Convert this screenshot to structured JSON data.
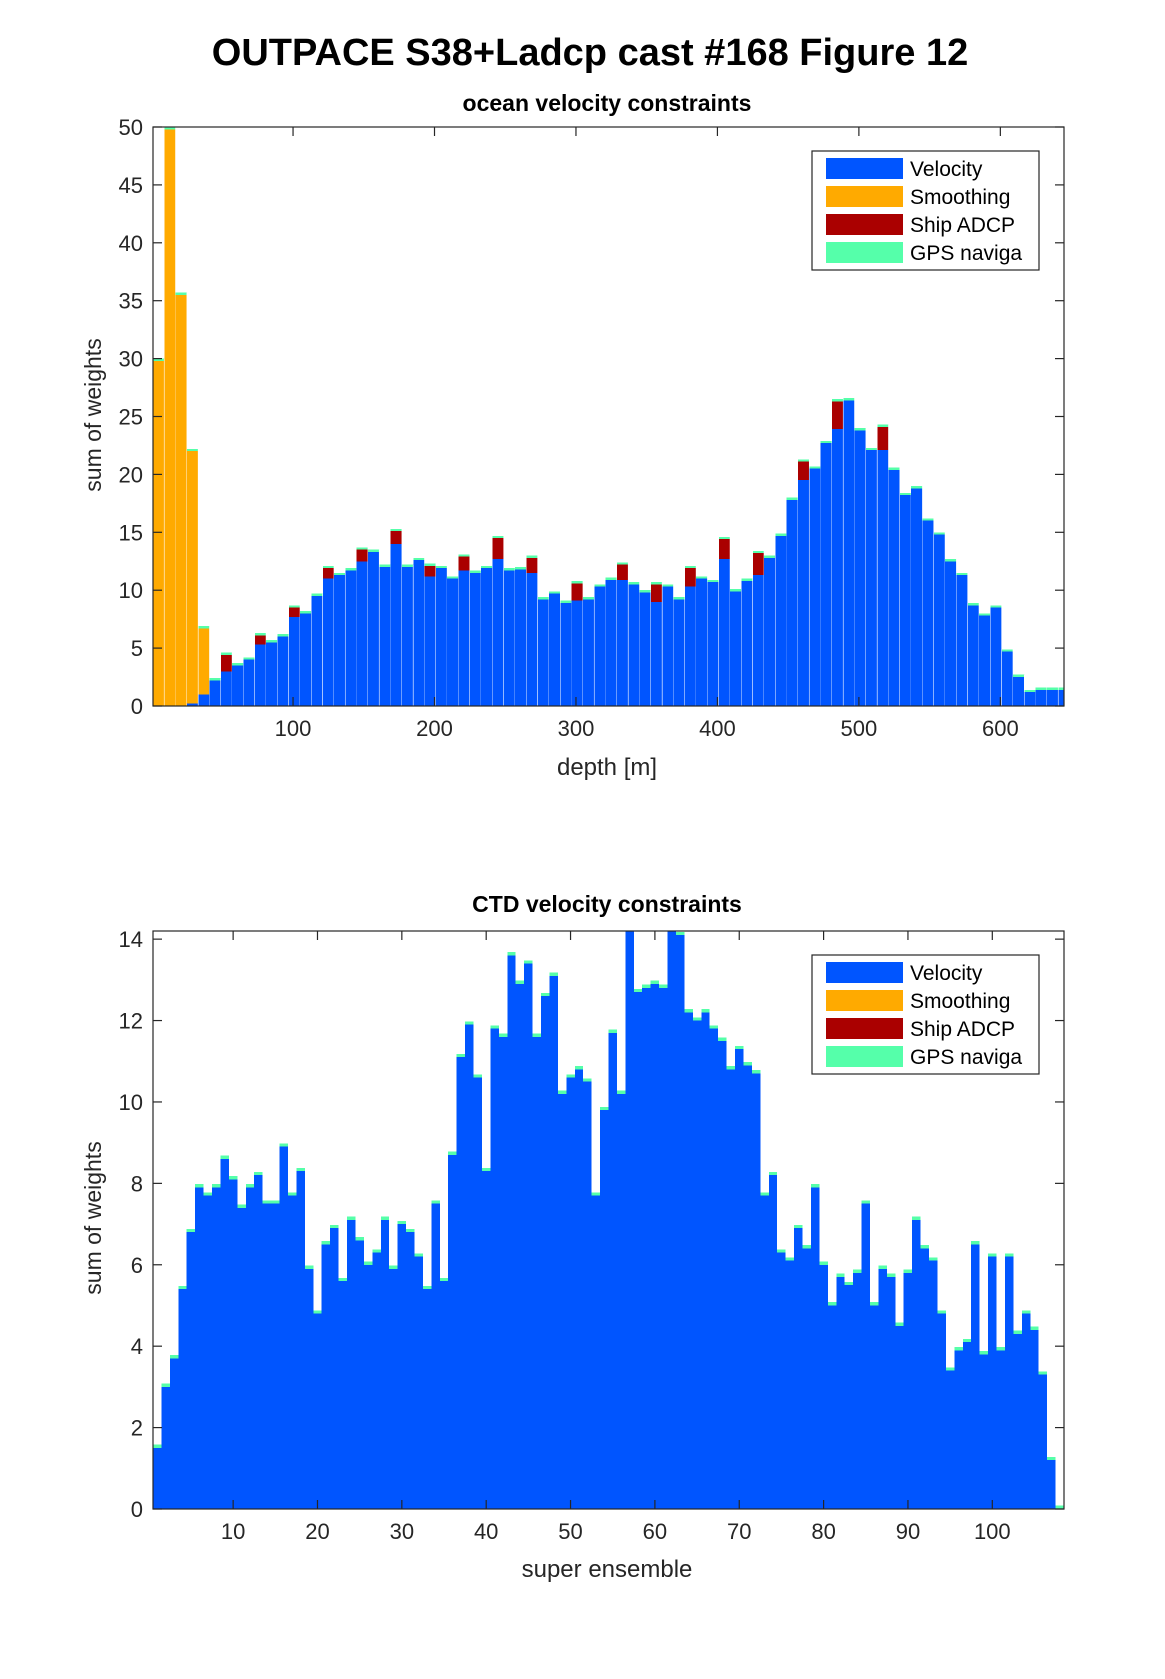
{
  "figure_title": "OUTPACE S38+Ladcp cast #168  Figure 12",
  "colors": {
    "velocity": "#0055ff",
    "smoothing": "#ffaa00",
    "ship_adcp": "#aa0000",
    "gps": "#55ffaa"
  },
  "legend": [
    "Velocity",
    "Smoothing",
    "Ship ADCP",
    "GPS naviga"
  ],
  "chart_data": [
    {
      "type": "bar",
      "stacked": true,
      "title": "ocean velocity constraints",
      "xlabel": "depth [m]",
      "ylabel": "sum of weights",
      "xlim": [
        1,
        645
      ],
      "ylim": [
        0,
        50
      ],
      "xticks": [
        100,
        200,
        300,
        400,
        500,
        600
      ],
      "yticks": [
        0,
        5,
        10,
        15,
        20,
        25,
        30,
        35,
        40,
        45,
        50
      ],
      "legend_position": "top-right",
      "bin_width": 8,
      "x": [
        5,
        13,
        21,
        29,
        37,
        45,
        53,
        61,
        69,
        77,
        85,
        93,
        101,
        109,
        117,
        125,
        133,
        141,
        149,
        157,
        165,
        173,
        181,
        189,
        197,
        205,
        213,
        221,
        229,
        237,
        245,
        253,
        261,
        269,
        277,
        285,
        293,
        301,
        309,
        317,
        325,
        333,
        341,
        349,
        357,
        365,
        373,
        381,
        389,
        397,
        405,
        413,
        421,
        429,
        437,
        445,
        453,
        461,
        469,
        477,
        485,
        493,
        501,
        509,
        517,
        525,
        533,
        541,
        549,
        557,
        565,
        573,
        581,
        589,
        597,
        605,
        613,
        621,
        629,
        637,
        645
      ],
      "series": [
        {
          "name": "Velocity",
          "values": [
            0,
            0,
            0,
            0.2,
            1.0,
            2.2,
            3.0,
            3.5,
            4.0,
            5.3,
            5.5,
            6.0,
            7.7,
            8.0,
            9.5,
            11.0,
            11.3,
            11.7,
            12.5,
            13.3,
            12.0,
            14.0,
            12.0,
            12.6,
            11.2,
            11.9,
            11.0,
            11.7,
            11.5,
            11.9,
            12.7,
            11.7,
            11.8,
            11.5,
            9.2,
            9.7,
            8.9,
            9.1,
            9.2,
            10.3,
            10.9,
            10.9,
            10.5,
            9.8,
            9.0,
            10.3,
            9.2,
            10.3,
            11.0,
            10.7,
            12.7,
            9.9,
            10.8,
            11.3,
            12.8,
            14.7,
            17.8,
            19.5,
            20.5,
            22.7,
            23.9,
            26.4,
            23.8,
            22.1,
            22.1,
            20.4,
            18.2,
            18.8,
            16.0,
            14.8,
            12.5,
            11.3,
            8.7,
            7.8,
            8.5,
            4.7,
            2.5,
            1.2,
            1.4,
            1.4,
            1.4
          ]
        },
        {
          "name": "Smoothing",
          "values": [
            29.8,
            49.8,
            35.5,
            21.8,
            5.7,
            0,
            0,
            0,
            0,
            0,
            0,
            0,
            0,
            0,
            0,
            0,
            0,
            0,
            0,
            0,
            0,
            0,
            0,
            0,
            0,
            0,
            0,
            0,
            0,
            0,
            0,
            0,
            0,
            0,
            0,
            0,
            0,
            0,
            0,
            0,
            0,
            0,
            0,
            0,
            0,
            0,
            0,
            0,
            0,
            0,
            0,
            0,
            0,
            0,
            0,
            0,
            0,
            0,
            0,
            0,
            0,
            0,
            0,
            0,
            0,
            0,
            0,
            0,
            0,
            0,
            0,
            0,
            0,
            0,
            0,
            0,
            0,
            0,
            0,
            0,
            0
          ]
        },
        {
          "name": "Ship ADCP",
          "values": [
            0,
            0,
            0,
            0,
            0,
            0,
            1.4,
            0,
            0,
            0.8,
            0,
            0,
            0.8,
            0,
            0,
            0.9,
            0,
            0,
            1.0,
            0,
            0,
            1.1,
            0,
            0,
            0.9,
            0,
            0,
            1.2,
            0,
            0,
            1.8,
            0,
            0,
            1.3,
            0,
            0,
            0,
            1.5,
            0,
            0,
            0,
            1.3,
            0,
            0,
            1.5,
            0,
            0,
            1.6,
            0,
            0,
            1.7,
            0,
            0,
            1.9,
            0,
            0,
            0,
            1.6,
            0,
            0,
            2.4,
            0,
            0,
            0,
            2.0,
            0,
            0,
            0,
            0,
            0,
            0,
            0,
            0,
            0,
            0,
            0,
            0,
            0,
            0,
            0,
            0
          ]
        },
        {
          "name": "GPS naviga",
          "values": [
            0.2,
            0.2,
            0.2,
            0.2,
            0.2,
            0.2,
            0.2,
            0.2,
            0.2,
            0.2,
            0.2,
            0.2,
            0.2,
            0.2,
            0.2,
            0.2,
            0.2,
            0.2,
            0.2,
            0.2,
            0.2,
            0.2,
            0.2,
            0.2,
            0.2,
            0.2,
            0.2,
            0.2,
            0.2,
            0.2,
            0.2,
            0.2,
            0.2,
            0.2,
            0.2,
            0.2,
            0.2,
            0.2,
            0.2,
            0.2,
            0.2,
            0.2,
            0.2,
            0.2,
            0.2,
            0.2,
            0.2,
            0.2,
            0.2,
            0.2,
            0.2,
            0.2,
            0.2,
            0.2,
            0.2,
            0.2,
            0.2,
            0.2,
            0.2,
            0.2,
            0.2,
            0.2,
            0.2,
            0.2,
            0.2,
            0.2,
            0.2,
            0.2,
            0.2,
            0.2,
            0.2,
            0.2,
            0.2,
            0.2,
            0.2,
            0.2,
            0.2,
            0.2,
            0.2,
            0.2,
            0.2
          ]
        }
      ]
    },
    {
      "type": "bar",
      "stacked": true,
      "title": "CTD velocity constraints",
      "xlabel": "super ensemble",
      "ylabel": "sum of weights",
      "xlim": [
        0.5,
        108.5
      ],
      "ylim": [
        0,
        14.2
      ],
      "xticks": [
        10,
        20,
        30,
        40,
        50,
        60,
        70,
        80,
        90,
        100
      ],
      "yticks": [
        0,
        2,
        4,
        6,
        8,
        10,
        12,
        14
      ],
      "legend_position": "top-right",
      "bin_width": 1,
      "x": [
        1,
        2,
        3,
        4,
        5,
        6,
        7,
        8,
        9,
        10,
        11,
        12,
        13,
        14,
        15,
        16,
        17,
        18,
        19,
        20,
        21,
        22,
        23,
        24,
        25,
        26,
        27,
        28,
        29,
        30,
        31,
        32,
        33,
        34,
        35,
        36,
        37,
        38,
        39,
        40,
        41,
        42,
        43,
        44,
        45,
        46,
        47,
        48,
        49,
        50,
        51,
        52,
        53,
        54,
        55,
        56,
        57,
        58,
        59,
        60,
        61,
        62,
        63,
        64,
        65,
        66,
        67,
        68,
        69,
        70,
        71,
        72,
        73,
        74,
        75,
        76,
        77,
        78,
        79,
        80,
        81,
        82,
        83,
        84,
        85,
        86,
        87,
        88,
        89,
        90,
        91,
        92,
        93,
        94,
        95,
        96,
        97,
        98,
        99,
        100,
        101,
        102,
        103,
        104,
        105,
        106,
        107,
        108
      ],
      "series": [
        {
          "name": "Velocity",
          "values": [
            1.5,
            3.0,
            3.7,
            5.4,
            6.8,
            7.9,
            7.7,
            7.9,
            8.6,
            8.1,
            7.4,
            7.9,
            8.2,
            7.5,
            7.5,
            8.9,
            7.7,
            8.3,
            5.9,
            4.8,
            6.5,
            6.9,
            5.6,
            7.1,
            6.6,
            6.0,
            6.3,
            7.1,
            5.9,
            7.0,
            6.8,
            6.2,
            5.4,
            7.5,
            5.6,
            8.7,
            11.1,
            11.9,
            10.6,
            8.3,
            11.8,
            11.6,
            13.6,
            12.9,
            13.4,
            11.6,
            12.6,
            13.1,
            10.2,
            10.6,
            10.8,
            10.5,
            7.7,
            9.8,
            11.7,
            10.2,
            14.2,
            12.7,
            12.8,
            12.9,
            12.8,
            14.2,
            14.1,
            12.2,
            12.0,
            12.2,
            11.8,
            11.5,
            10.8,
            11.3,
            10.9,
            10.7,
            7.7,
            8.2,
            6.3,
            6.1,
            6.9,
            6.4,
            7.9,
            6.0,
            5.0,
            5.7,
            5.5,
            5.8,
            7.5,
            5.0,
            5.9,
            5.7,
            4.5,
            5.8,
            7.1,
            6.4,
            6.1,
            4.8,
            3.4,
            3.9,
            4.1,
            6.5,
            3.8,
            6.2,
            3.9,
            6.2,
            4.3,
            4.8,
            4.4,
            3.3,
            1.2,
            0
          ]
        },
        {
          "name": "Smoothing",
          "values": [
            0,
            0,
            0,
            0,
            0,
            0,
            0,
            0,
            0,
            0,
            0,
            0,
            0,
            0,
            0,
            0,
            0,
            0,
            0,
            0,
            0,
            0,
            0,
            0,
            0,
            0,
            0,
            0,
            0,
            0,
            0,
            0,
            0,
            0,
            0,
            0,
            0,
            0,
            0,
            0,
            0,
            0,
            0,
            0,
            0,
            0,
            0,
            0,
            0,
            0,
            0,
            0,
            0,
            0,
            0,
            0,
            0,
            0,
            0,
            0,
            0,
            0,
            0,
            0,
            0,
            0,
            0,
            0,
            0,
            0,
            0,
            0,
            0,
            0,
            0,
            0,
            0,
            0,
            0,
            0,
            0,
            0,
            0,
            0,
            0,
            0,
            0,
            0,
            0,
            0,
            0,
            0,
            0,
            0,
            0,
            0,
            0,
            0,
            0,
            0,
            0,
            0,
            0,
            0,
            0,
            0,
            0,
            0
          ]
        },
        {
          "name": "Ship ADCP",
          "values": [
            0,
            0,
            0,
            0,
            0,
            0,
            0,
            0,
            0,
            0,
            0,
            0,
            0,
            0,
            0,
            0,
            0,
            0,
            0,
            0,
            0,
            0,
            0,
            0,
            0,
            0,
            0,
            0,
            0,
            0,
            0,
            0,
            0,
            0,
            0,
            0,
            0,
            0,
            0,
            0,
            0,
            0,
            0,
            0,
            0,
            0,
            0,
            0,
            0,
            0,
            0,
            0,
            0,
            0,
            0,
            0,
            0,
            0,
            0,
            0,
            0,
            0,
            0,
            0,
            0,
            0,
            0,
            0,
            0,
            0,
            0,
            0,
            0,
            0,
            0,
            0,
            0,
            0,
            0,
            0,
            0,
            0,
            0,
            0,
            0,
            0,
            0,
            0,
            0,
            0,
            0,
            0,
            0,
            0,
            0,
            0,
            0,
            0,
            0,
            0,
            0,
            0,
            0,
            0,
            0,
            0,
            0,
            0
          ]
        },
        {
          "name": "GPS naviga",
          "values": [
            0.08,
            0.08,
            0.08,
            0.08,
            0.08,
            0.08,
            0.08,
            0.08,
            0.08,
            0.08,
            0.08,
            0.08,
            0.08,
            0.08,
            0.08,
            0.08,
            0.08,
            0.08,
            0.08,
            0.08,
            0.08,
            0.08,
            0.08,
            0.08,
            0.08,
            0.08,
            0.08,
            0.08,
            0.08,
            0.08,
            0.08,
            0.08,
            0.08,
            0.08,
            0.08,
            0.08,
            0.08,
            0.08,
            0.08,
            0.08,
            0.08,
            0.08,
            0.08,
            0.08,
            0.08,
            0.08,
            0.08,
            0.08,
            0.08,
            0.08,
            0.08,
            0.08,
            0.08,
            0.08,
            0.08,
            0.08,
            0.08,
            0.08,
            0.08,
            0.08,
            0.08,
            0.08,
            0.08,
            0.08,
            0.08,
            0.08,
            0.08,
            0.08,
            0.08,
            0.08,
            0.08,
            0.08,
            0.08,
            0.08,
            0.08,
            0.08,
            0.08,
            0.08,
            0.08,
            0.08,
            0.08,
            0.08,
            0.08,
            0.08,
            0.08,
            0.08,
            0.08,
            0.08,
            0.08,
            0.08,
            0.08,
            0.08,
            0.08,
            0.08,
            0.08,
            0.08,
            0.08,
            0.08,
            0.08,
            0.08,
            0.08,
            0.08,
            0.08,
            0.08,
            0.08,
            0.08,
            0.08,
            0.08
          ]
        }
      ]
    }
  ]
}
